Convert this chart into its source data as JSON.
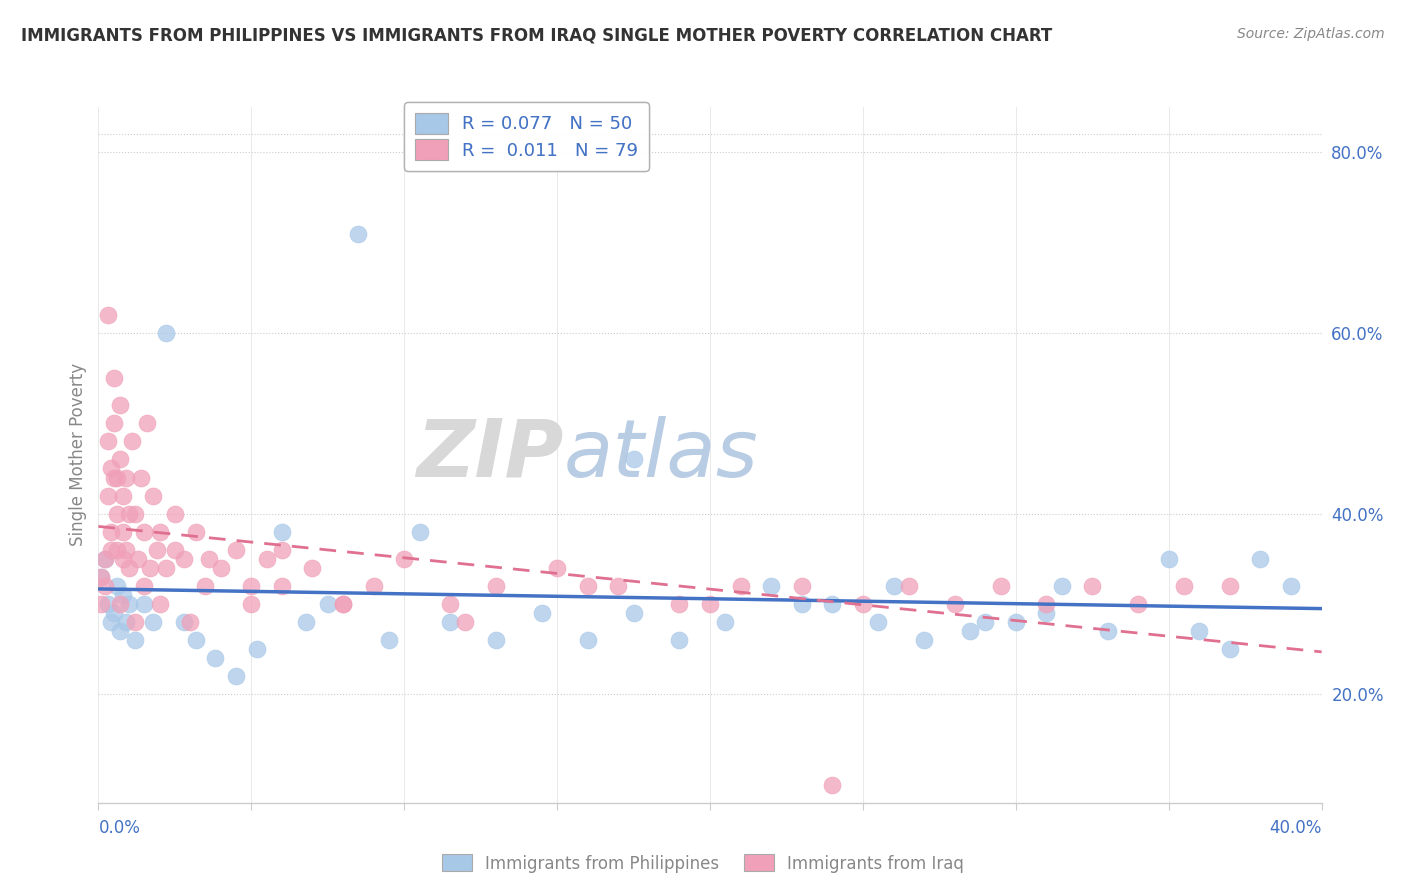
{
  "title": "IMMIGRANTS FROM PHILIPPINES VS IMMIGRANTS FROM IRAQ SINGLE MOTHER POVERTY CORRELATION CHART",
  "source": "Source: ZipAtlas.com",
  "ylabel": "Single Mother Poverty",
  "legend_label1": "Immigrants from Philippines",
  "legend_label2": "Immigrants from Iraq",
  "R1": 0.077,
  "N1": 50,
  "R2": 0.011,
  "N2": 79,
  "color_blue": "#A8C8E8",
  "color_pink": "#F0A0B8",
  "color_blue_line": "#4472C4",
  "color_pink_line": "#E07090",
  "color_blue_text": "#4472C4",
  "watermark_zip": "ZIP",
  "watermark_atlas": "atlas",
  "xlim": [
    0.0,
    0.4
  ],
  "ylim": [
    0.08,
    0.85
  ],
  "right_ytick_vals": [
    0.2,
    0.4,
    0.6,
    0.8
  ],
  "right_ytick_labels": [
    "20.0%",
    "40.0%",
    "60.0%",
    "80.0%"
  ],
  "philippines_x": [
    0.001,
    0.002,
    0.003,
    0.004,
    0.005,
    0.006,
    0.007,
    0.008,
    0.009,
    0.01,
    0.012,
    0.015,
    0.018,
    0.022,
    0.028,
    0.032,
    0.038,
    0.045,
    0.052,
    0.06,
    0.068,
    0.075,
    0.085,
    0.095,
    0.105,
    0.115,
    0.13,
    0.145,
    0.16,
    0.175,
    0.19,
    0.205,
    0.22,
    0.24,
    0.255,
    0.27,
    0.285,
    0.3,
    0.315,
    0.33,
    0.175,
    0.23,
    0.26,
    0.29,
    0.31,
    0.35,
    0.36,
    0.37,
    0.38,
    0.39
  ],
  "philippines_y": [
    0.33,
    0.35,
    0.3,
    0.28,
    0.29,
    0.32,
    0.27,
    0.31,
    0.28,
    0.3,
    0.26,
    0.3,
    0.28,
    0.6,
    0.28,
    0.26,
    0.24,
    0.22,
    0.25,
    0.38,
    0.28,
    0.3,
    0.71,
    0.26,
    0.38,
    0.28,
    0.26,
    0.29,
    0.26,
    0.29,
    0.26,
    0.28,
    0.32,
    0.3,
    0.28,
    0.26,
    0.27,
    0.28,
    0.32,
    0.27,
    0.46,
    0.3,
    0.32,
    0.28,
    0.29,
    0.35,
    0.27,
    0.25,
    0.35,
    0.32
  ],
  "iraq_x": [
    0.001,
    0.001,
    0.002,
    0.002,
    0.003,
    0.003,
    0.004,
    0.004,
    0.005,
    0.005,
    0.006,
    0.006,
    0.007,
    0.007,
    0.008,
    0.008,
    0.009,
    0.009,
    0.01,
    0.01,
    0.011,
    0.012,
    0.013,
    0.014,
    0.015,
    0.016,
    0.017,
    0.018,
    0.019,
    0.02,
    0.022,
    0.025,
    0.028,
    0.032,
    0.036,
    0.04,
    0.045,
    0.05,
    0.055,
    0.06,
    0.07,
    0.08,
    0.09,
    0.1,
    0.115,
    0.13,
    0.15,
    0.17,
    0.19,
    0.21,
    0.23,
    0.25,
    0.265,
    0.28,
    0.295,
    0.31,
    0.325,
    0.34,
    0.355,
    0.37,
    0.003,
    0.004,
    0.005,
    0.006,
    0.007,
    0.008,
    0.012,
    0.015,
    0.02,
    0.025,
    0.03,
    0.035,
    0.05,
    0.06,
    0.08,
    0.12,
    0.16,
    0.2,
    0.24
  ],
  "iraq_y": [
    0.33,
    0.3,
    0.35,
    0.32,
    0.48,
    0.42,
    0.45,
    0.38,
    0.5,
    0.44,
    0.4,
    0.36,
    0.52,
    0.46,
    0.42,
    0.38,
    0.44,
    0.36,
    0.4,
    0.34,
    0.48,
    0.4,
    0.35,
    0.44,
    0.38,
    0.5,
    0.34,
    0.42,
    0.36,
    0.38,
    0.34,
    0.4,
    0.35,
    0.38,
    0.35,
    0.34,
    0.36,
    0.32,
    0.35,
    0.32,
    0.34,
    0.3,
    0.32,
    0.35,
    0.3,
    0.32,
    0.34,
    0.32,
    0.3,
    0.32,
    0.32,
    0.3,
    0.32,
    0.3,
    0.32,
    0.3,
    0.32,
    0.3,
    0.32,
    0.32,
    0.62,
    0.36,
    0.55,
    0.44,
    0.3,
    0.35,
    0.28,
    0.32,
    0.3,
    0.36,
    0.28,
    0.32,
    0.3,
    0.36,
    0.3,
    0.28,
    0.32,
    0.3,
    0.1
  ]
}
